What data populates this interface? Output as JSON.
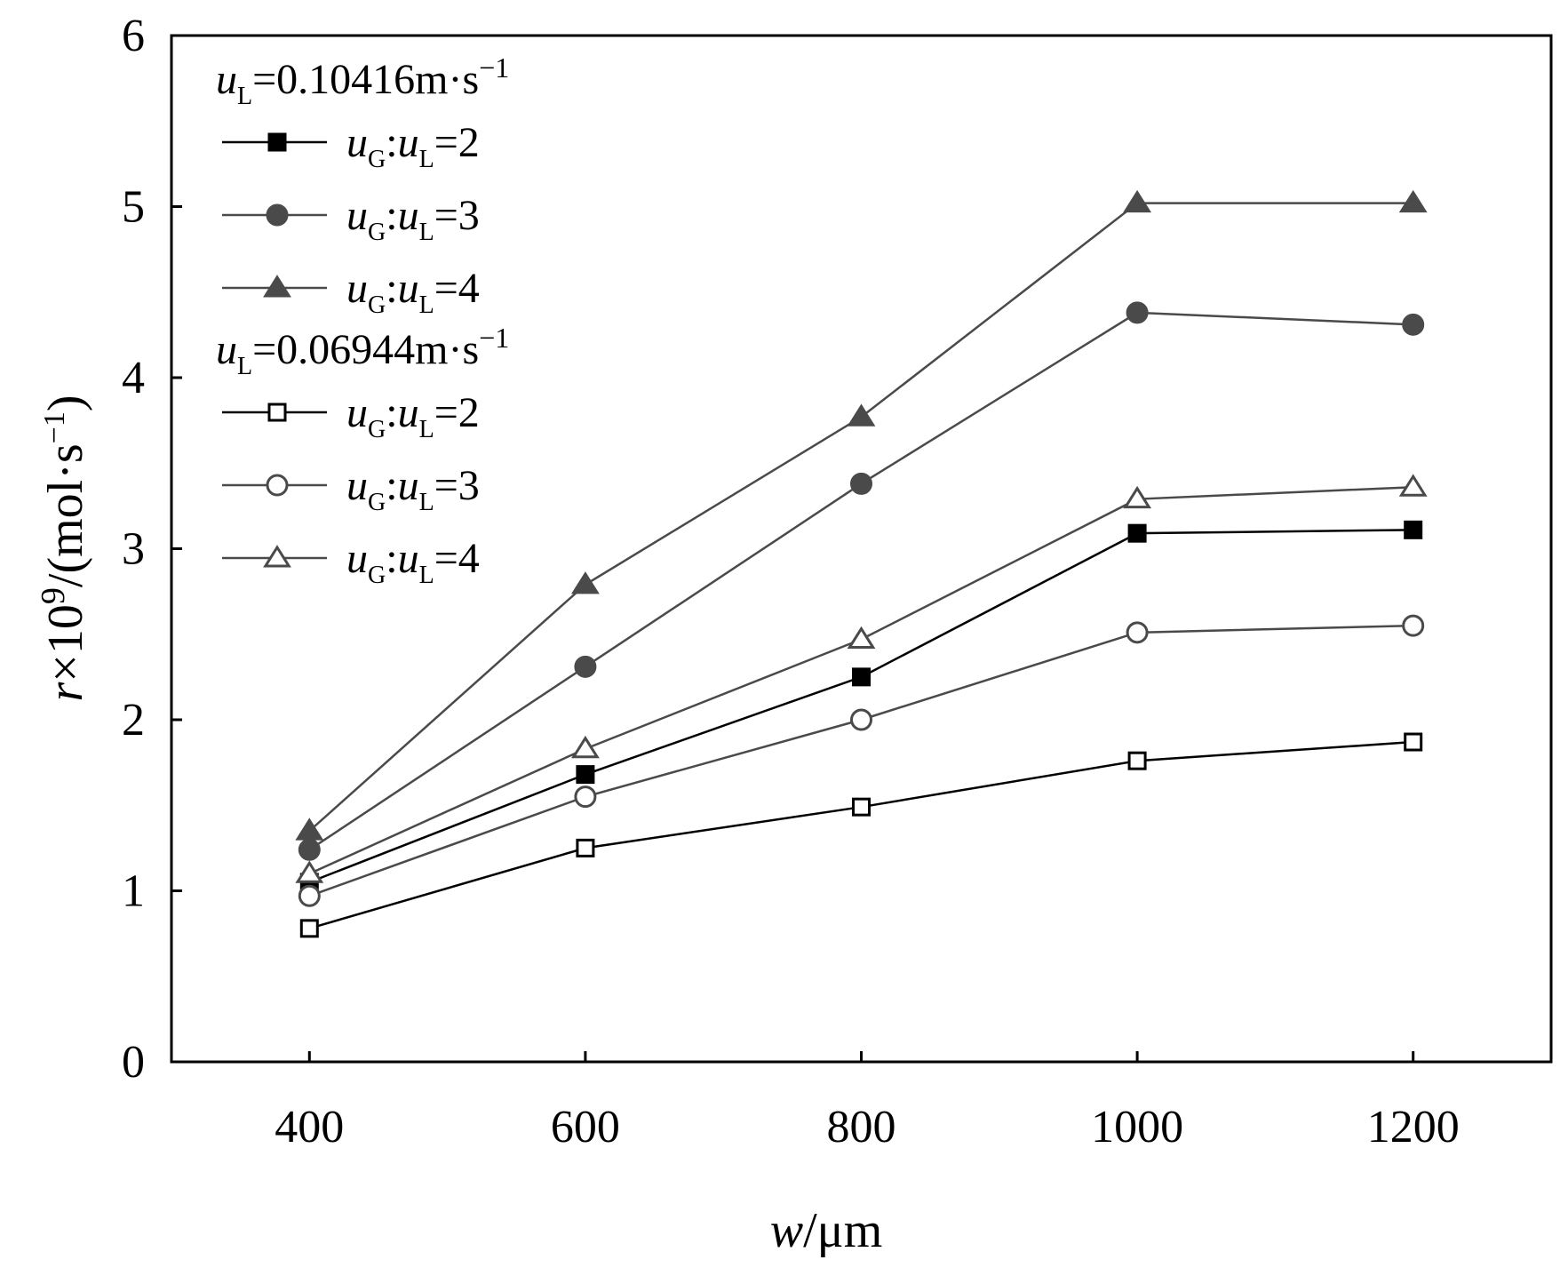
{
  "chart_data": {
    "type": "line",
    "xlabel": {
      "var": "w",
      "unit": "/μm"
    },
    "ylabel": {
      "var": "r",
      "mid": "×10",
      "exp": "9",
      "unit": "/(mol·s",
      "unit_exp": "−1",
      "close": ")"
    },
    "xlim": [
      300,
      1300
    ],
    "ylim": [
      0,
      6
    ],
    "x_ticks": [
      400,
      600,
      800,
      1000,
      1200
    ],
    "y_ticks": [
      0,
      1,
      2,
      3,
      4,
      5,
      6
    ],
    "x": [
      400,
      600,
      800,
      1000,
      1200
    ],
    "legend_groups": [
      {
        "header": {
          "var": "u",
          "sub": "L",
          "text": "=0.10416m·s",
          "exp": "−1"
        },
        "series": [
          {
            "label": {
              "a": "u",
              "a_sub": "G",
              "sep": ":",
              "b": "u",
              "b_sub": "L",
              "rest": "=2"
            },
            "marker": "square",
            "filled": true,
            "color": "#000000",
            "values": [
              1.05,
              1.68,
              2.25,
              3.09,
              3.11
            ]
          },
          {
            "label": {
              "a": "u",
              "a_sub": "G",
              "sep": ":",
              "b": "u",
              "b_sub": "L",
              "rest": "=3"
            },
            "marker": "circle",
            "filled": true,
            "color": "#4a4a4a",
            "values": [
              1.24,
              2.31,
              3.38,
              4.38,
              4.31
            ]
          },
          {
            "label": {
              "a": "u",
              "a_sub": "G",
              "sep": ":",
              "b": "u",
              "b_sub": "L",
              "rest": "=4"
            },
            "marker": "triangle",
            "filled": true,
            "color": "#4a4a4a",
            "values": [
              1.35,
              2.79,
              3.77,
              5.02,
              5.02
            ]
          }
        ]
      },
      {
        "header": {
          "var": "u",
          "sub": "L",
          "text": "=0.06944m·s",
          "exp": "−1"
        },
        "series": [
          {
            "label": {
              "a": "u",
              "a_sub": "G",
              "sep": ":",
              "b": "u",
              "b_sub": "L",
              "rest": "=2"
            },
            "marker": "square",
            "filled": false,
            "color": "#000000",
            "values": [
              0.78,
              1.25,
              1.49,
              1.76,
              1.87
            ]
          },
          {
            "label": {
              "a": "u",
              "a_sub": "G",
              "sep": ":",
              "b": "u",
              "b_sub": "L",
              "rest": "=3"
            },
            "marker": "circle",
            "filled": false,
            "color": "#4a4a4a",
            "values": [
              0.97,
              1.55,
              2.0,
              2.51,
              2.55
            ]
          },
          {
            "label": {
              "a": "u",
              "a_sub": "G",
              "sep": ":",
              "b": "u",
              "b_sub": "L",
              "rest": "=4"
            },
            "marker": "triangle",
            "filled": false,
            "color": "#4a4a4a",
            "values": [
              1.1,
              1.83,
              2.47,
              3.29,
              3.36
            ]
          }
        ]
      }
    ],
    "grid": false,
    "legend_position": "top-left"
  }
}
